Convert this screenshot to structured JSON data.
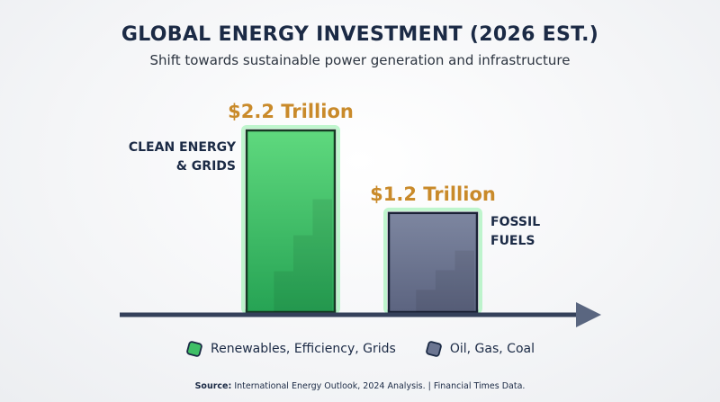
{
  "chart_data": {
    "type": "bar",
    "title": "GLOBAL ENERGY INVESTMENT (2026 EST.)",
    "subtitle": "Shift towards sustainable power generation and infrastructure",
    "categories": [
      "CLEAN ENERGY & GRIDS",
      "FOSSIL FUELS"
    ],
    "category_lines": [
      [
        "CLEAN ENERGY",
        "& GRIDS"
      ],
      [
        "FOSSIL",
        "FUELS"
      ]
    ],
    "values": [
      2.2,
      1.2
    ],
    "value_labels": [
      "$2.2 Trillion",
      "$1.2 Trillion"
    ],
    "unit": "Trillion USD",
    "ylim": [
      0,
      2.2
    ],
    "grid": false,
    "legend": [
      {
        "label": "Renewables, Efficiency, Grids",
        "color": "#3fbf66",
        "icon": "green-gem-icon"
      },
      {
        "label": "Oil, Gas, Coal",
        "color": "#6b7591",
        "icon": "gray-gem-icon"
      }
    ],
    "legend_position": "bottom",
    "colors": {
      "clean": "#3fbf66",
      "fossil": "#6b7591",
      "value_label": "#c98a2a",
      "text": "#1b2a45"
    }
  },
  "source": {
    "label": "Source:",
    "text": "International Energy Outlook, 2024 Analysis. | Financial Times Data."
  }
}
